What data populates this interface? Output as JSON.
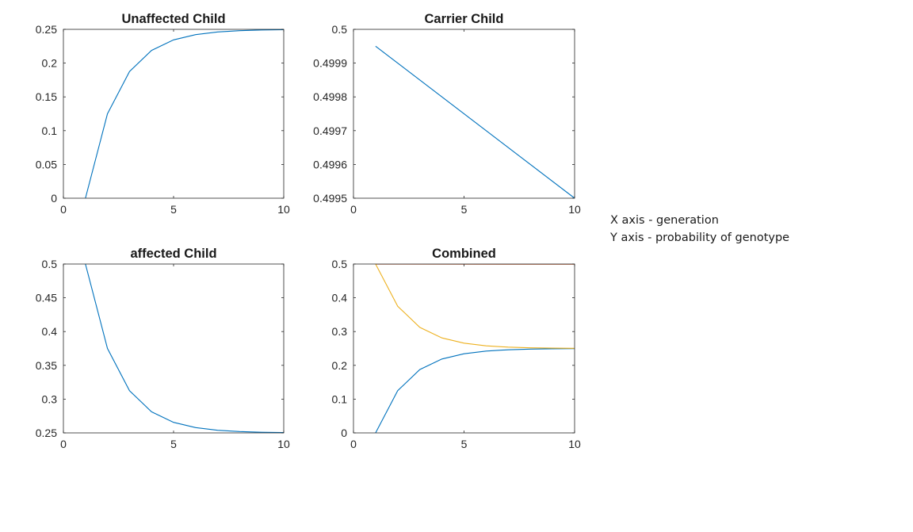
{
  "notes": {
    "x_note": "X axis - generation",
    "y_note": "Y axis - probability of genotype"
  },
  "colors": {
    "blue": "#0072bd",
    "orange": "#d95319",
    "yellow": "#edb120",
    "axis": "#262626"
  },
  "chart_data": [
    {
      "type": "line",
      "title": "Unaffected Child",
      "xlim": [
        0,
        10
      ],
      "ylim": [
        0,
        0.25
      ],
      "xticks": [
        0,
        5,
        10
      ],
      "xtick_labels": [
        "0",
        "5",
        "10"
      ],
      "yticks": [
        0,
        0.05,
        0.1,
        0.15,
        0.2,
        0.25
      ],
      "ytick_labels": [
        "0",
        "0.05",
        "0.1",
        "0.15",
        "0.2",
        "0.25"
      ],
      "grid": false,
      "series": [
        {
          "color": "#0072bd",
          "x": [
            1,
            2,
            3,
            4,
            5,
            6,
            7,
            8,
            9,
            10
          ],
          "y": [
            0,
            0.125,
            0.1875,
            0.21875,
            0.234375,
            0.2421875,
            0.24609375,
            0.248046875,
            0.2490234375,
            0.24951171875
          ]
        }
      ]
    },
    {
      "type": "line",
      "title": "Carrier Child",
      "xlim": [
        0,
        10
      ],
      "ylim": [
        0.4995,
        0.5
      ],
      "xticks": [
        0,
        5,
        10
      ],
      "xtick_labels": [
        "0",
        "5",
        "10"
      ],
      "yticks": [
        0.4995,
        0.4996,
        0.4997,
        0.4998,
        0.4999,
        0.5
      ],
      "ytick_labels": [
        "0.4995",
        "0.4996",
        "0.4997",
        "0.4998",
        "0.4999",
        "0.5"
      ],
      "grid": false,
      "series": [
        {
          "color": "#0072bd",
          "x": [
            1,
            10
          ],
          "y": [
            0.49995,
            0.4995
          ]
        }
      ]
    },
    {
      "type": "line",
      "title": "affected Child",
      "xlim": [
        0,
        10
      ],
      "ylim": [
        0.25,
        0.5
      ],
      "xticks": [
        0,
        5,
        10
      ],
      "xtick_labels": [
        "0",
        "5",
        "10"
      ],
      "yticks": [
        0.25,
        0.3,
        0.35,
        0.4,
        0.45,
        0.5
      ],
      "ytick_labels": [
        "0.25",
        "0.3",
        "0.35",
        "0.4",
        "0.45",
        "0.5"
      ],
      "grid": false,
      "series": [
        {
          "color": "#0072bd",
          "x": [
            1,
            2,
            3,
            4,
            5,
            6,
            7,
            8,
            9,
            10
          ],
          "y": [
            0.5,
            0.375,
            0.3125,
            0.28125,
            0.265625,
            0.2578125,
            0.25390625,
            0.251953125,
            0.2509765625,
            0.25048828125
          ]
        }
      ]
    },
    {
      "type": "line",
      "title": "Combined",
      "xlim": [
        0,
        10
      ],
      "ylim": [
        0,
        0.5
      ],
      "xticks": [
        0,
        5,
        10
      ],
      "xtick_labels": [
        "0",
        "5",
        "10"
      ],
      "yticks": [
        0,
        0.1,
        0.2,
        0.3,
        0.4,
        0.5
      ],
      "ytick_labels": [
        "0",
        "0.1",
        "0.2",
        "0.3",
        "0.4",
        "0.5"
      ],
      "grid": false,
      "series": [
        {
          "color": "#0072bd",
          "x": [
            1,
            2,
            3,
            4,
            5,
            6,
            7,
            8,
            9,
            10
          ],
          "y": [
            0,
            0.125,
            0.1875,
            0.21875,
            0.234375,
            0.2421875,
            0.24609375,
            0.248046875,
            0.2490234375,
            0.24951171875
          ]
        },
        {
          "color": "#d95319",
          "x": [
            1,
            10
          ],
          "y": [
            0.49995,
            0.4995
          ]
        },
        {
          "color": "#edb120",
          "x": [
            1,
            2,
            3,
            4,
            5,
            6,
            7,
            8,
            9,
            10
          ],
          "y": [
            0.5,
            0.375,
            0.3125,
            0.28125,
            0.265625,
            0.2578125,
            0.25390625,
            0.251953125,
            0.2509765625,
            0.25048828125
          ]
        }
      ]
    }
  ]
}
